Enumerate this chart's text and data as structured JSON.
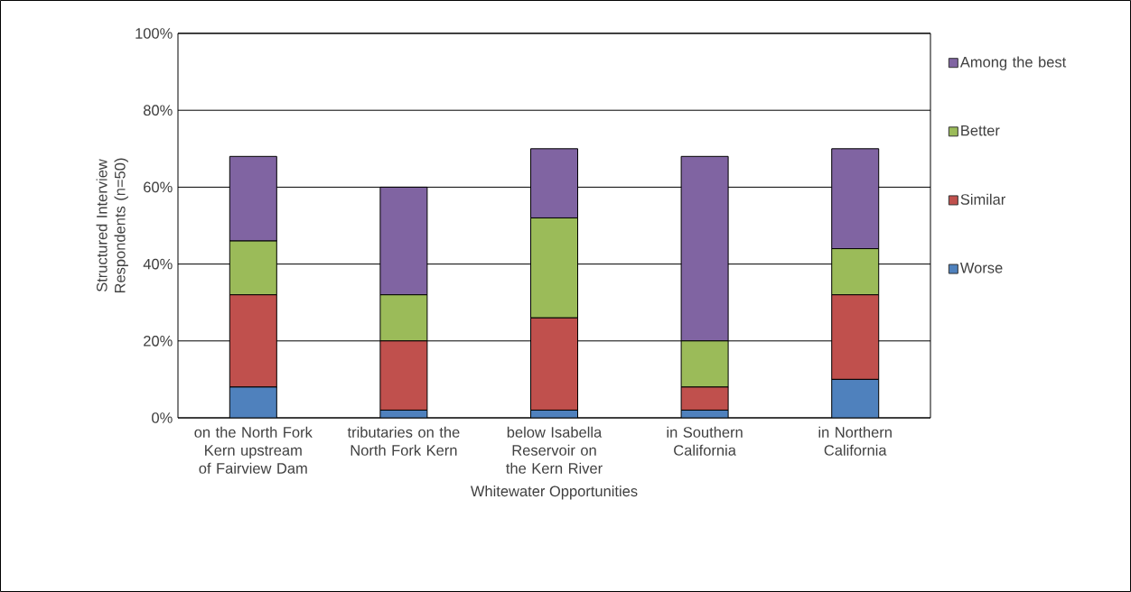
{
  "chart_data": {
    "type": "bar",
    "stacked": true,
    "xlabel": "Whitewater Opportunities",
    "ylabel": "Structured Interview Respondents (n=50)",
    "categories": [
      "on the North Fork Kern upstream of Fairview Dam",
      "tributaries on the North Fork Kern",
      "below Isabella Reservoir on the Kern River",
      "in Southern California",
      "in Northern California"
    ],
    "series": [
      {
        "name": "Worse",
        "color": "#4f81bd",
        "values": [
          8,
          2,
          2,
          2,
          10
        ]
      },
      {
        "name": "Similar",
        "color": "#c0504d",
        "values": [
          24,
          18,
          24,
          6,
          22
        ]
      },
      {
        "name": "Better",
        "color": "#9bbb59",
        "values": [
          14,
          12,
          26,
          12,
          12
        ]
      },
      {
        "name": "Among the best",
        "color": "#8064a2",
        "values": [
          22,
          28,
          18,
          48,
          26
        ]
      }
    ],
    "ylim": [
      0,
      100
    ],
    "yticks": [
      {
        "value": 0,
        "label": "0%"
      },
      {
        "value": 20,
        "label": "20%"
      },
      {
        "value": 40,
        "label": "40%"
      },
      {
        "value": 60,
        "label": "60%"
      },
      {
        "value": 80,
        "label": "80%"
      },
      {
        "value": 100,
        "label": "100%"
      }
    ],
    "grid": "y",
    "legend": "right"
  }
}
